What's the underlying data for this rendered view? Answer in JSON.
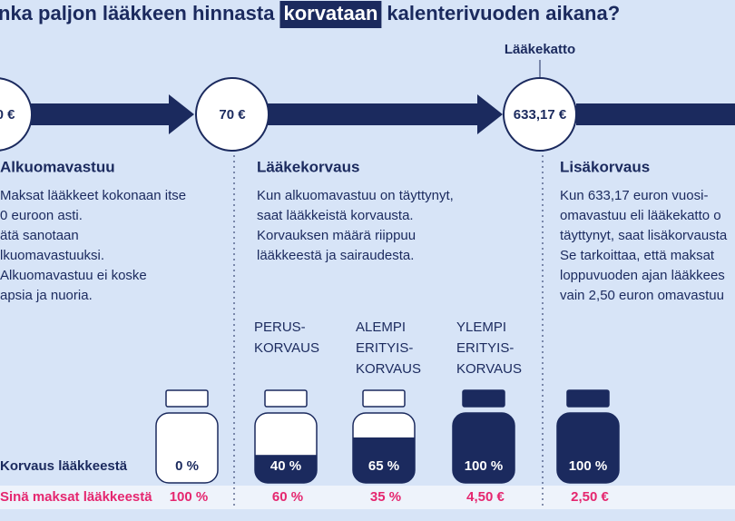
{
  "title": {
    "before": "nka paljon lääkkeen hinnasta",
    "highlight": "korvataan",
    "after": "kalenterivuoden aikana?"
  },
  "ceiling_label": "Lääkekatto",
  "circles": [
    "0 €",
    "70 €",
    "633,17 €"
  ],
  "columns": [
    {
      "heading": "Alkuomavastuu",
      "lines": [
        "Maksat lääkkeet kokonaan itse",
        "0 euroon asti.",
        "ätä sanotaan",
        "lkuomavastuuksi.",
        "Alkuomavastuu ei koske",
        "apsia ja nuoria."
      ]
    },
    {
      "heading": "Lääkekorvaus",
      "lines": [
        "Kun alkuomavastuu on täyttynyt,",
        "saat lääkkeistä korvausta.",
        "Korvauksen määrä riippuu",
        "lääkkeestä ja sairaudesta."
      ]
    },
    {
      "heading": "Lisäkorvaus",
      "lines": [
        "Kun 633,17 euron vuosi-",
        "omavastuu eli lääkekatto o",
        "täyttynyt, saat lisäkorvausta",
        "Se tarkoittaa, että maksat",
        "loppuvuoden ajan lääkkees",
        "vain 2,50 euron omavastuu"
      ]
    }
  ],
  "bottle_titles": [
    [
      "PERUS-",
      "KORVAUS"
    ],
    [
      "ALEMPI",
      "ERITYIS-",
      "KORVAUS"
    ],
    [
      "YLEMPI",
      "ERITYIS-",
      "KORVAUS"
    ]
  ],
  "coverage": {
    "label": "Korvaus lääkkeestä",
    "values": [
      0,
      40,
      65,
      100,
      100
    ],
    "value_labels": [
      "0 %",
      "40 %",
      "65 %",
      "100 %",
      "100 %"
    ]
  },
  "you_pay": {
    "label": "Sinä maksat lääkkeestä",
    "values": [
      "100 %",
      "60 %",
      "35 %",
      "4,50 €",
      "2,50 €"
    ]
  }
}
